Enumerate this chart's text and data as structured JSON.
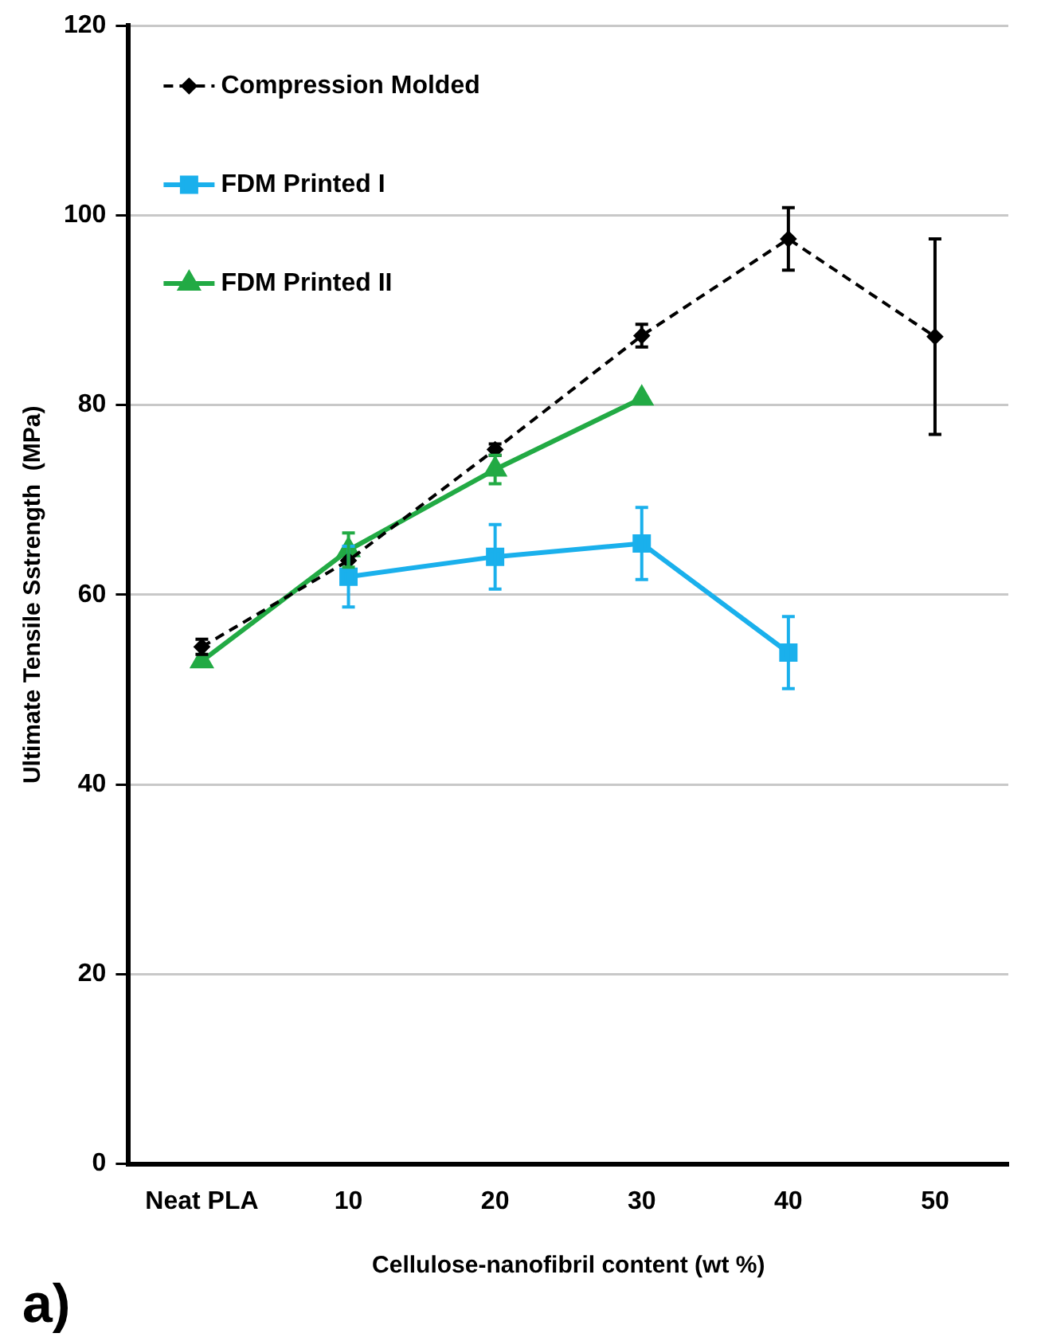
{
  "chart_data": {
    "type": "line",
    "xlabel": "Cellulose-nanofibril content (wt %)",
    "ylabel": "Ultimate Tensile Sstrength  (MPa)",
    "categories": [
      "Neat PLA",
      "10",
      "20",
      "30",
      "40",
      "50"
    ],
    "ylim": [
      0,
      120
    ],
    "yticks": [
      0,
      20,
      40,
      60,
      80,
      100,
      120
    ],
    "grid": "y",
    "legend": "top left",
    "annotations": [
      "a)"
    ],
    "series": [
      {
        "name": "Compression Molded",
        "color": "#000000",
        "marker": "diamond",
        "line_style": "dashed",
        "values": [
          54.5,
          63.6,
          75.3,
          87.3,
          97.5,
          87.2
        ],
        "errors": [
          0.8,
          null,
          0.6,
          1.2,
          3.3,
          10.3
        ]
      },
      {
        "name": "FDM Printed I",
        "color": "#1ab0ec",
        "marker": "square",
        "line_style": "solid",
        "values": [
          null,
          61.9,
          64.0,
          65.4,
          53.9,
          null
        ],
        "errors": [
          null,
          3.2,
          3.4,
          3.8,
          3.8,
          null
        ]
      },
      {
        "name": "FDM Printed II",
        "color": "#22aa44",
        "marker": "triangle",
        "line_style": "solid",
        "values": [
          53.0,
          64.7,
          73.2,
          80.7,
          null,
          null
        ],
        "errors": [
          null,
          1.8,
          1.5,
          null,
          null,
          null
        ]
      }
    ]
  }
}
